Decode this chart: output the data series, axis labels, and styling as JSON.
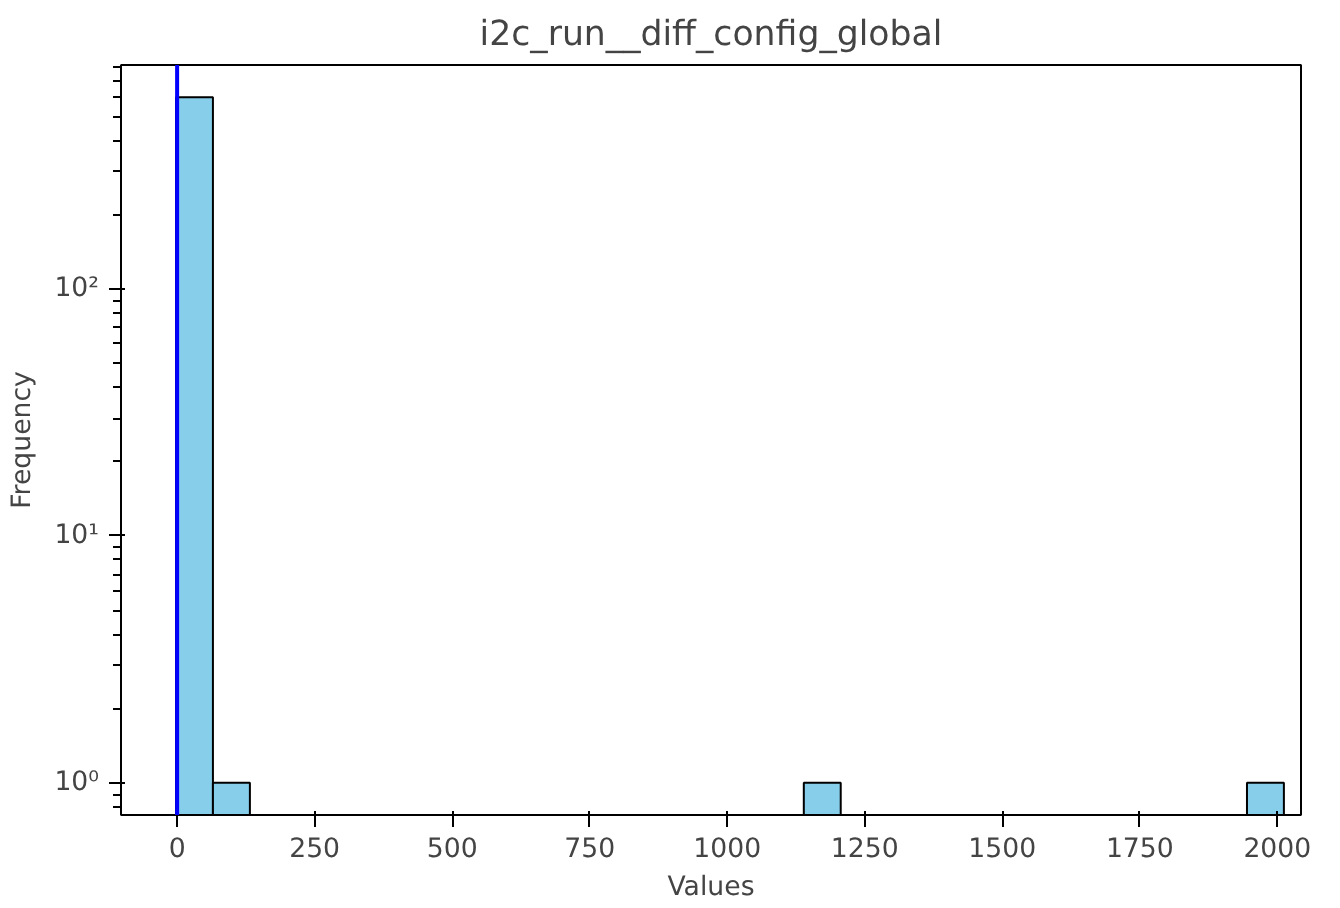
{
  "chart_data": {
    "type": "histogram",
    "title": "i2c_run__diff_config_global",
    "xlabel": "Values",
    "ylabel": "Frequency",
    "bins": [
      -2,
      65.1,
      132.3,
      199.4,
      266.5,
      333.7,
      400.8,
      467.9,
      535.0,
      602.2,
      669.3,
      736.4,
      803.6,
      870.7,
      937.8,
      1005.0,
      1072.1,
      1139.2,
      1206.3,
      1273.5,
      1340.6,
      1407.7,
      1474.9,
      1542.0,
      1609.1,
      1676.3,
      1743.4,
      1810.5,
      1877.6,
      1944.8,
      2011.9
    ],
    "values": [
      600,
      1,
      null,
      null,
      null,
      null,
      null,
      null,
      null,
      null,
      null,
      null,
      null,
      null,
      null,
      null,
      null,
      1,
      null,
      null,
      null,
      null,
      null,
      null,
      null,
      null,
      null,
      null,
      null,
      1
    ],
    "color": "#87ceeb",
    "log": "y",
    "xlim": [
      -102,
      2043
    ],
    "ylim": [
      0.74,
      810
    ],
    "xticks": [
      0,
      250,
      500,
      750,
      1000,
      1250,
      1500,
      1750,
      2000
    ],
    "yticks": [
      {
        "value": 1,
        "label": "10⁰"
      },
      {
        "value": 10,
        "label": "10¹"
      },
      {
        "value": 100,
        "label": "10²"
      }
    ],
    "ref_lines": [
      {
        "axis": "x",
        "value": 0,
        "color": "#0000ff"
      }
    ],
    "grid": false
  }
}
